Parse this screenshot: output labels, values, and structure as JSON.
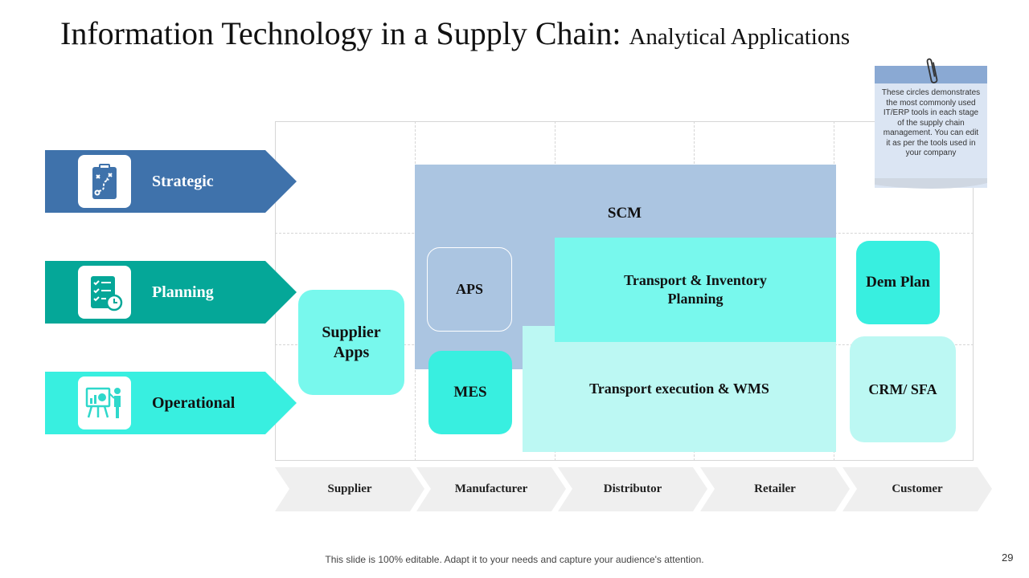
{
  "title": {
    "main": "Information Technology in a Supply Chain:",
    "sub": "Analytical Applications"
  },
  "categories": [
    {
      "label": "Strategic",
      "color": "#3f72ab",
      "icon": "strategy-board-icon"
    },
    {
      "label": "Planning",
      "color": "#05a798",
      "icon": "checklist-clock-icon"
    },
    {
      "label": "Operational",
      "color": "#38efe0",
      "icon": "presentation-easel-icon"
    }
  ],
  "stages": [
    "Supplier",
    "Manufacturer",
    "Distributor",
    "Retailer",
    "Customer"
  ],
  "blocks": {
    "scm": "SCM",
    "aps": "APS",
    "mes": "MES",
    "supplier_apps": "Supplier Apps",
    "transport_inventory": "Transport & Inventory Planning",
    "transport_exec": "Transport execution & WMS",
    "dem_plan": "Dem Plan",
    "crm_sfa": "CRM/ SFA"
  },
  "note": {
    "text": "These circles demonstrates the most commonly used IT/ERP tools in each stage of the supply chain management.  You can edit it as per the tools used in your company"
  },
  "footer": "This slide is 100% editable. Adapt it to your needs and capture your audience's attention.",
  "page_number": "29"
}
